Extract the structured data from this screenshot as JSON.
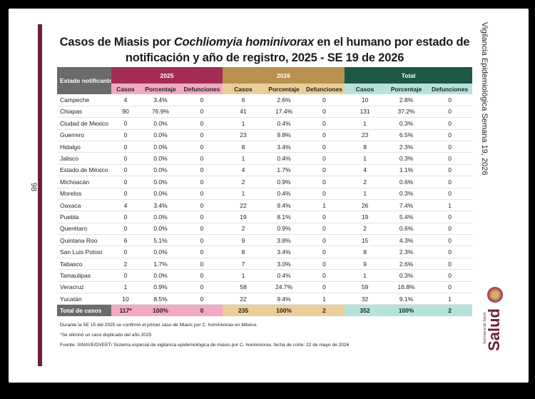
{
  "page_number": "98",
  "side_title": "Vigilancia Epidemiológica Semana 19, 2026",
  "logo": {
    "word": "Salud",
    "sub": "Secretaría de Salud"
  },
  "title": {
    "part1": "Casos de Miasis por ",
    "species": "Cochliomyia hominivorax",
    "part2": " en el humano por estado de notificación y año de registro, 2025 - SE 19 de 2026"
  },
  "table": {
    "state_header": "Estado notificante",
    "groups": [
      "2025",
      "2026",
      "Total"
    ],
    "subheaders": [
      "Casos",
      "Porcentaje",
      "Defunciones"
    ],
    "rows": [
      [
        "Campeche",
        "4",
        "3.4%",
        "0",
        "6",
        "2.6%",
        "0",
        "10",
        "2.8%",
        "0"
      ],
      [
        "Chiapas",
        "90",
        "76.9%",
        "0",
        "41",
        "17.4%",
        "0",
        "131",
        "37.2%",
        "0"
      ],
      [
        "Ciudad de Mexico",
        "0",
        "0.0%",
        "0",
        "1",
        "0.4%",
        "0",
        "1",
        "0.3%",
        "0"
      ],
      [
        "Guerrero",
        "0",
        "0.0%",
        "0",
        "23",
        "9.8%",
        "0",
        "23",
        "6.5%",
        "0"
      ],
      [
        "Hidalgo",
        "0",
        "0.0%",
        "0",
        "8",
        "3.4%",
        "0",
        "8",
        "2.3%",
        "0"
      ],
      [
        "Jalisco",
        "0",
        "0.0%",
        "0",
        "1",
        "0.4%",
        "0",
        "1",
        "0.3%",
        "0"
      ],
      [
        "Estado de México",
        "0",
        "0.0%",
        "0",
        "4",
        "1.7%",
        "0",
        "4",
        "1.1%",
        "0"
      ],
      [
        "Michoacán",
        "0",
        "0.0%",
        "0",
        "2",
        "0.9%",
        "0",
        "2",
        "0.6%",
        "0"
      ],
      [
        "Morelos",
        "0",
        "0.0%",
        "0",
        "1",
        "0.4%",
        "0",
        "1",
        "0.3%",
        "0"
      ],
      [
        "Oaxaca",
        "4",
        "3.4%",
        "0",
        "22",
        "9.4%",
        "1",
        "26",
        "7.4%",
        "1"
      ],
      [
        "Puebla",
        "0",
        "0.0%",
        "0",
        "19",
        "8.1%",
        "0",
        "19",
        "5.4%",
        "0"
      ],
      [
        "Querétaro",
        "0",
        "0.0%",
        "0",
        "2",
        "0.9%",
        "0",
        "2",
        "0.6%",
        "0"
      ],
      [
        "Quintana Roo",
        "6",
        "5.1%",
        "0",
        "9",
        "3.8%",
        "0",
        "15",
        "4.3%",
        "0"
      ],
      [
        "San Luis Potosí",
        "0",
        "0.0%",
        "0",
        "8",
        "3.4%",
        "0",
        "8",
        "2.3%",
        "0"
      ],
      [
        "Tabasco",
        "2",
        "1.7%",
        "0",
        "7",
        "3.0%",
        "0",
        "9",
        "2.6%",
        "0"
      ],
      [
        "Tamaulipas",
        "0",
        "0.0%",
        "0",
        "1",
        "0.4%",
        "0",
        "1",
        "0.3%",
        "0"
      ],
      [
        "Veracruz",
        "1",
        "0.9%",
        "0",
        "58",
        "24.7%",
        "0",
        "59",
        "16.8%",
        "0"
      ],
      [
        "Yucatán",
        "10",
        "8.5%",
        "0",
        "22",
        "9.4%",
        "1",
        "32",
        "9.1%",
        "1"
      ]
    ],
    "total": [
      "Total de casos",
      "117*",
      "100%",
      "0",
      "235",
      "100%",
      "2",
      "352",
      "100%",
      "2"
    ]
  },
  "notes": [
    "Durante la SE 15 del 2025 se confirmó el primer caso de Miasis por C. hominivorax en México.",
    "*Se eliminó un caso duplicado del año 2025",
    "Fuente: SINAVE/DVEET/ Sistema especial de vigilancia epidemiológica de miasis por C. hominivorax, fecha de corte: 22 de mayo de 2026"
  ],
  "colors": {
    "y2025": "#a32d55",
    "y2026": "#b8914f",
    "total": "#1f5746",
    "maroon": "#6b1f3f"
  }
}
